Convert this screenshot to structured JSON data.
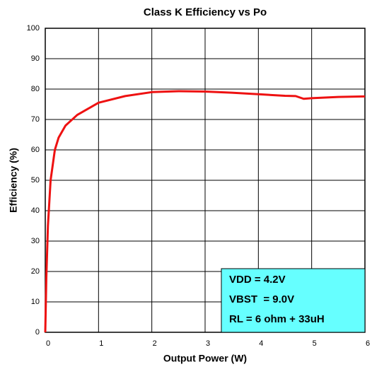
{
  "chart_data": {
    "type": "line",
    "title": "Class K Efficiency vs Po",
    "xlabel": "Output Power (W)",
    "ylabel": "Efficiency (%)",
    "x": [
      0,
      0.02,
      0.05,
      0.1,
      0.18,
      0.25,
      0.38,
      0.6,
      0.8,
      1,
      1.5,
      2,
      2.5,
      3,
      3.5,
      4,
      4.5,
      4.7,
      4.85,
      5,
      5.5,
      6
    ],
    "series": [
      {
        "name": "Efficiency",
        "color": "#ee1111",
        "values": [
          0,
          18,
          35,
          50,
          60,
          64,
          68,
          71.5,
          73.5,
          75.5,
          77.7,
          79,
          79.3,
          79.2,
          78.8,
          78.3,
          77.8,
          77.7,
          76.8,
          77,
          77.4,
          77.6
        ]
      }
    ],
    "xlim": [
      0,
      6
    ],
    "xticks": [
      0,
      1,
      2,
      3,
      4,
      5,
      6
    ],
    "ylim": [
      0,
      100
    ],
    "yticks": [
      0,
      10,
      20,
      30,
      40,
      50,
      60,
      70,
      80,
      90,
      100
    ],
    "grid": true,
    "annotations": [
      "VDD = 4.2V",
      "VBST  = 9.0V",
      "RL = 6 ohm + 33uH"
    ],
    "annotation_color": "#66ffff"
  }
}
